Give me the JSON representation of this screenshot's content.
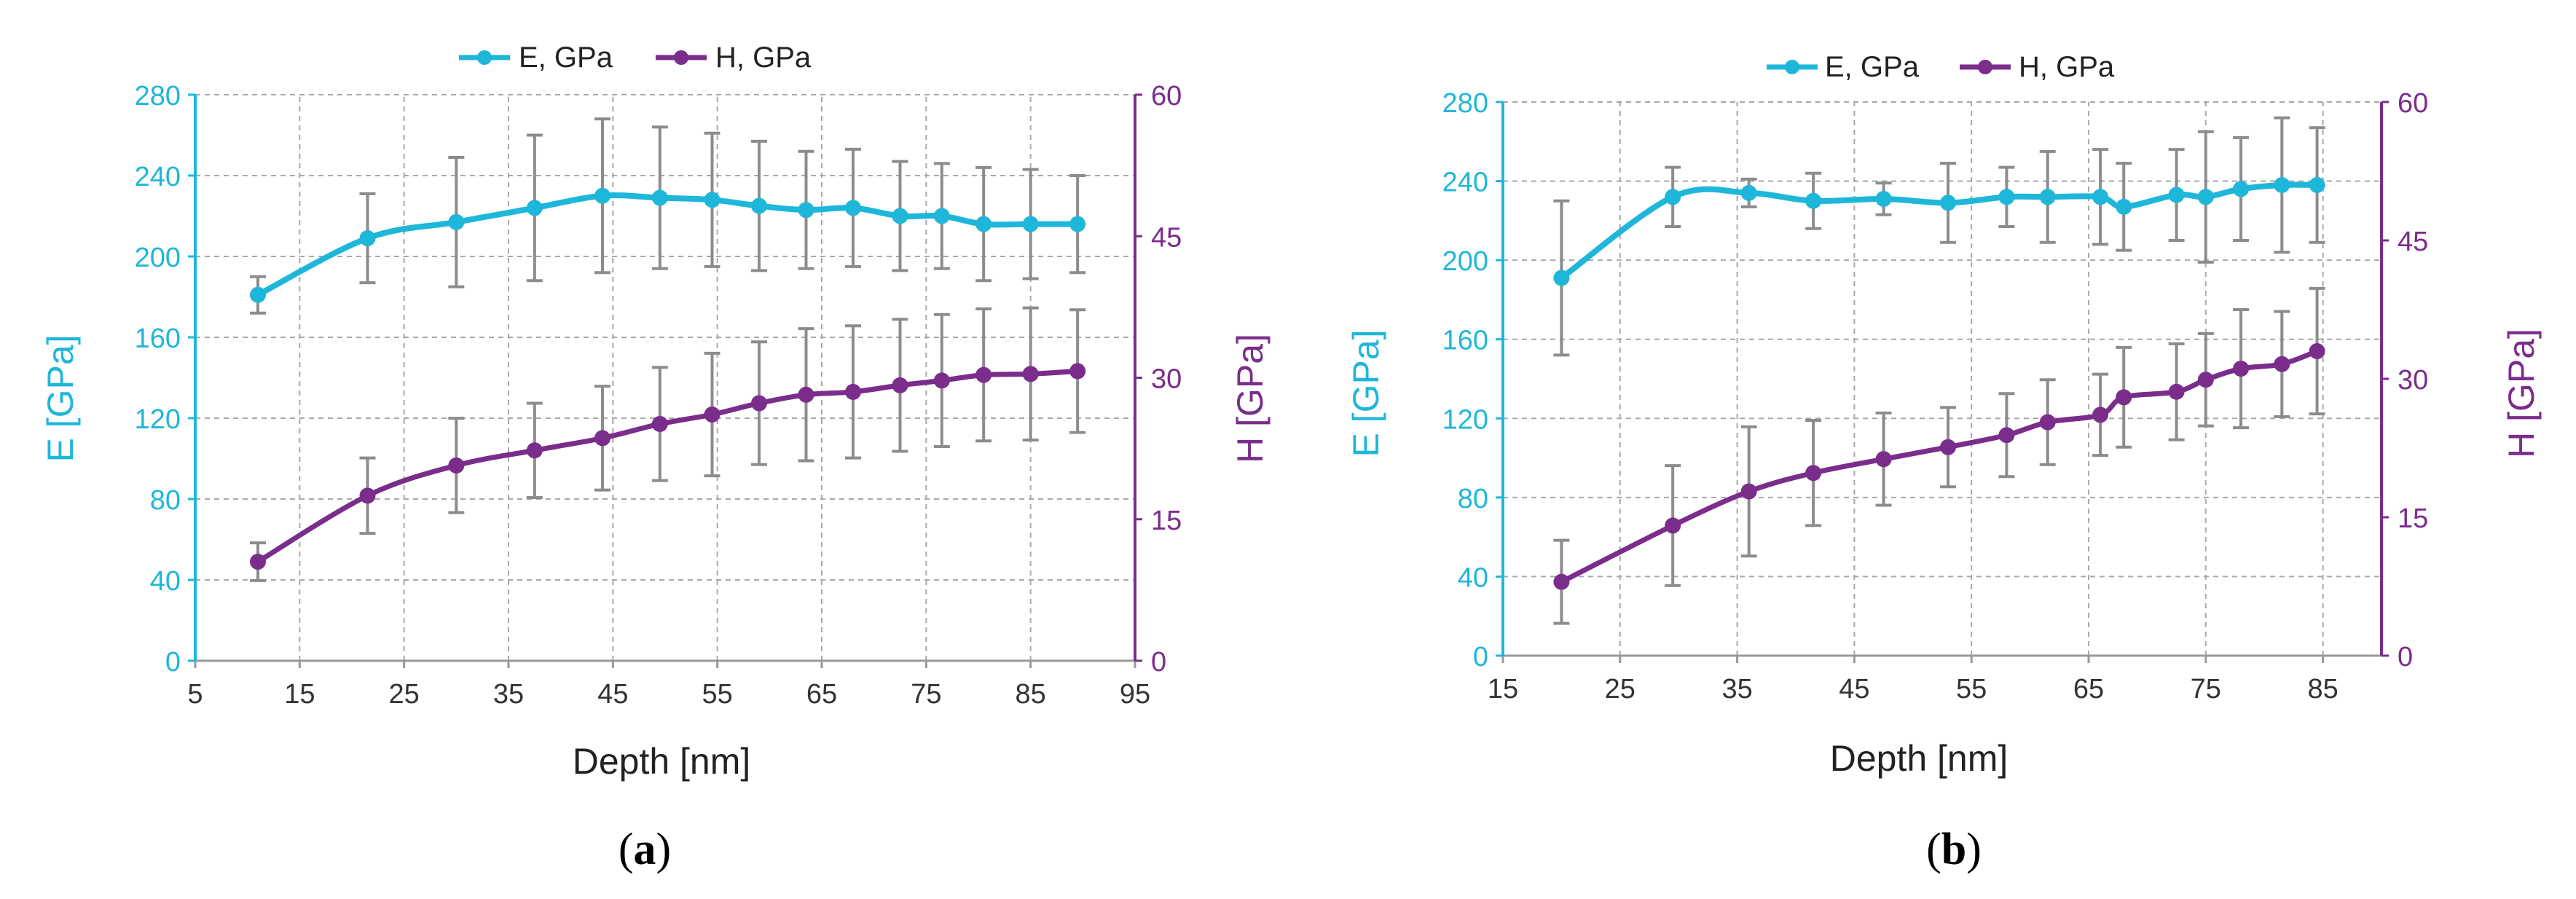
{
  "colors": {
    "e_series": "#1EB7DA",
    "h_series": "#7A2D8B",
    "grid": "#A8A8A8",
    "error_bar": "#8C8C8C",
    "axis_text": "#333333"
  },
  "chart_data": [
    {
      "type": "line",
      "caption": "(a)",
      "caption_parts": {
        "open": "(",
        "letter": "a",
        "close": ")"
      },
      "legend": [
        "E, GPa",
        "H, GPa"
      ],
      "legend_position": "top-center",
      "xlabel": "Depth [nm]",
      "ylabel_left": "E [GPa]",
      "ylabel_right": "H [GPa]",
      "xlim": [
        5,
        95
      ],
      "ylim_left": [
        0,
        280
      ],
      "ylim_right": [
        0,
        60
      ],
      "x_ticks": [
        "5",
        "15",
        "25",
        "35",
        "45",
        "55",
        "65",
        "75",
        "85",
        "95"
      ],
      "y_left_ticks": [
        "0",
        "40",
        "80",
        "120",
        "160",
        "200",
        "240",
        "280"
      ],
      "y_right_ticks": [
        "0",
        "15",
        "30",
        "45",
        "60"
      ],
      "grid": true,
      "series": [
        {
          "name": "E, GPa",
          "axis": "left",
          "x": [
            11,
            21.5,
            30,
            37.5,
            44,
            49.5,
            54.5,
            59,
            63.5,
            68,
            72.5,
            76.5,
            80.5,
            85,
            89.5
          ],
          "values": [
            181,
            209,
            217,
            224,
            230,
            229,
            228,
            225,
            223,
            224,
            220,
            220,
            216,
            216,
            216
          ],
          "error": [
            9,
            22,
            32,
            36,
            38,
            35,
            33,
            32,
            29,
            29,
            27,
            26,
            28,
            27,
            24
          ]
        },
        {
          "name": "H, GPa",
          "axis": "right",
          "x": [
            11,
            21.5,
            30,
            37.5,
            44,
            49.5,
            54.5,
            59,
            63.5,
            68,
            72.5,
            76.5,
            80.5,
            85,
            89.5
          ],
          "values": [
            10.5,
            17.5,
            20.7,
            22.3,
            23.6,
            25.1,
            26.1,
            27.3,
            28.2,
            28.5,
            29.2,
            29.7,
            30.3,
            30.4,
            30.7
          ],
          "error": [
            2,
            4,
            5,
            5,
            5.5,
            6,
            6.5,
            6.5,
            7,
            7,
            7,
            7,
            7,
            7,
            6.5
          ]
        }
      ]
    },
    {
      "type": "line",
      "caption": "(b)",
      "caption_parts": {
        "open": "(",
        "letter": "b",
        "close": ")"
      },
      "legend": [
        "E, GPa",
        "H, GPa"
      ],
      "legend_position": "top-center",
      "xlabel": "Depth [nm]",
      "ylabel_left": "E [GPa]",
      "ylabel_right": "H [GPa]",
      "xlim": [
        15,
        90
      ],
      "ylim_left": [
        0,
        280
      ],
      "ylim_right": [
        0,
        60
      ],
      "x_ticks": [
        "15",
        "25",
        "35",
        "45",
        "55",
        "65",
        "75",
        "85"
      ],
      "y_left_ticks": [
        "0",
        "40",
        "80",
        "120",
        "160",
        "200",
        "240",
        "280"
      ],
      "y_right_ticks": [
        "0",
        "15",
        "30",
        "45",
        "60"
      ],
      "grid": true,
      "series": [
        {
          "name": "E, GPa",
          "axis": "left",
          "x": [
            20,
            29.5,
            36,
            41.5,
            47.5,
            53,
            58,
            61.5,
            66,
            68,
            72.5,
            75,
            78,
            81.5,
            84.5
          ],
          "values": [
            191,
            232,
            234,
            230,
            231,
            229,
            232,
            232,
            232,
            227,
            233,
            232,
            236,
            238,
            238
          ],
          "error": [
            39,
            15,
            7,
            14,
            8,
            20,
            15,
            23,
            24,
            22,
            23,
            33,
            26,
            34,
            29
          ]
        },
        {
          "name": "H, GPa",
          "axis": "right",
          "x": [
            20,
            29.5,
            36,
            41.5,
            47.5,
            53,
            58,
            61.5,
            66,
            68,
            72.5,
            75,
            78,
            81.5,
            84.5
          ],
          "values": [
            8,
            14.1,
            17.8,
            19.8,
            21.3,
            22.6,
            23.9,
            25.3,
            26.1,
            28,
            28.6,
            29.9,
            31.1,
            31.6,
            33
          ],
          "error": [
            4.5,
            6.5,
            7,
            5.7,
            5,
            4.3,
            4.5,
            4.6,
            4.4,
            5.4,
            5.2,
            5,
            6.4,
            5.7,
            6.8
          ]
        }
      ]
    }
  ]
}
